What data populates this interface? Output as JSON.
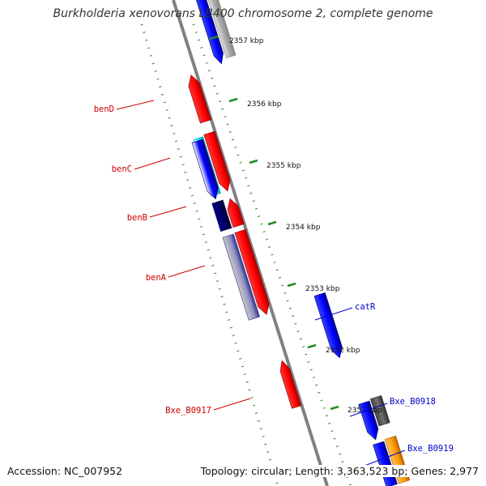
{
  "title": "Burkholderia xenovorans LB400 chromosome 2, complete genome",
  "footer": {
    "accession_label": "Accession:",
    "accession": "NC_007952",
    "topology_label": "Topology:",
    "topology": "circular",
    "length_label": "Length:",
    "length": "3,363,523 bp",
    "genes_label": "Genes:",
    "genes": "2,977"
  },
  "colors": {
    "forward_gene": "#ff0000",
    "reverse_gene": "#0000ff",
    "backbone": "#8c8c8c",
    "tick_marks": "#228b22",
    "forward_label": "#cc0000",
    "reverse_label": "#0000cc"
  },
  "scale_ticks": [
    "2357 kbp",
    "2356 kbp",
    "2355 kbp",
    "2354 kbp",
    "2353 kbp",
    "2352 kbp",
    "2351 kbp"
  ],
  "gene_labels": [
    {
      "name": "benD",
      "strand": "forward"
    },
    {
      "name": "benC",
      "strand": "forward"
    },
    {
      "name": "benB",
      "strand": "forward"
    },
    {
      "name": "benA",
      "strand": "forward"
    },
    {
      "name": "Bxe_B0917",
      "strand": "forward"
    },
    {
      "name": "catR",
      "strand": "reverse"
    },
    {
      "name": "Bxe_B0918",
      "strand": "reverse"
    },
    {
      "name": "Bxe_B0919",
      "strand": "reverse"
    }
  ]
}
